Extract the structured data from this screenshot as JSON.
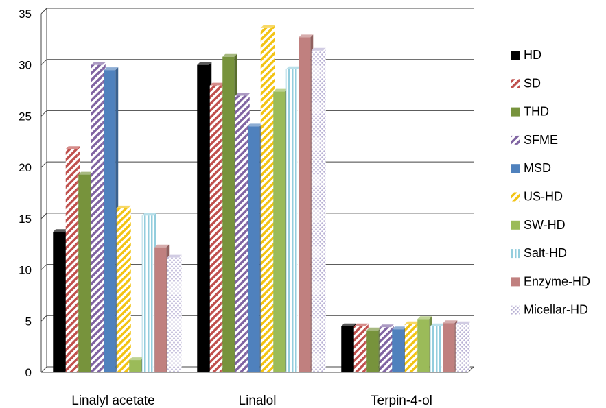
{
  "chart_data": {
    "type": "bar",
    "title": "",
    "xlabel": "",
    "ylabel": "",
    "ylim": [
      0,
      35
    ],
    "yticks": [
      0,
      5,
      10,
      15,
      20,
      25,
      30,
      35
    ],
    "grid": true,
    "legend_position": "right",
    "categories": [
      "Linalyl acetate",
      "Linalol",
      "Terpin-4-ol"
    ],
    "series": [
      {
        "name": "HD",
        "values": [
          13.7,
          30.0,
          4.5
        ],
        "color": "#000000",
        "pattern": "solid"
      },
      {
        "name": "SD",
        "values": [
          21.8,
          28.0,
          4.5
        ],
        "color": "#c0504d",
        "pattern": "diagonal-stripes"
      },
      {
        "name": "THD",
        "values": [
          19.3,
          30.8,
          4.1
        ],
        "color": "#77933c",
        "pattern": "solid"
      },
      {
        "name": "SFME",
        "values": [
          30.0,
          27.0,
          4.4
        ],
        "color": "#8064a2",
        "pattern": "diagonal-stripes"
      },
      {
        "name": "MSD",
        "values": [
          29.5,
          24.0,
          4.2
        ],
        "color": "#4f81bd",
        "pattern": "solid"
      },
      {
        "name": "US-HD",
        "values": [
          16.0,
          33.6,
          4.7
        ],
        "color": "#f2c314",
        "pattern": "diagonal-stripes"
      },
      {
        "name": "SW-HD",
        "values": [
          1.2,
          27.4,
          5.2
        ],
        "color": "#9bbb59",
        "pattern": "solid"
      },
      {
        "name": "Salt-HD",
        "values": [
          15.3,
          29.6,
          4.5
        ],
        "color": "#93cddd",
        "pattern": "vertical-stripes"
      },
      {
        "name": "Enzyme-HD",
        "values": [
          12.2,
          32.7,
          4.8
        ],
        "color": "#c0807f",
        "pattern": "solid"
      },
      {
        "name": "Micellar-HD",
        "values": [
          11.2,
          31.4,
          4.7
        ],
        "color": "#b8b0d4",
        "pattern": "dotted"
      }
    ]
  }
}
